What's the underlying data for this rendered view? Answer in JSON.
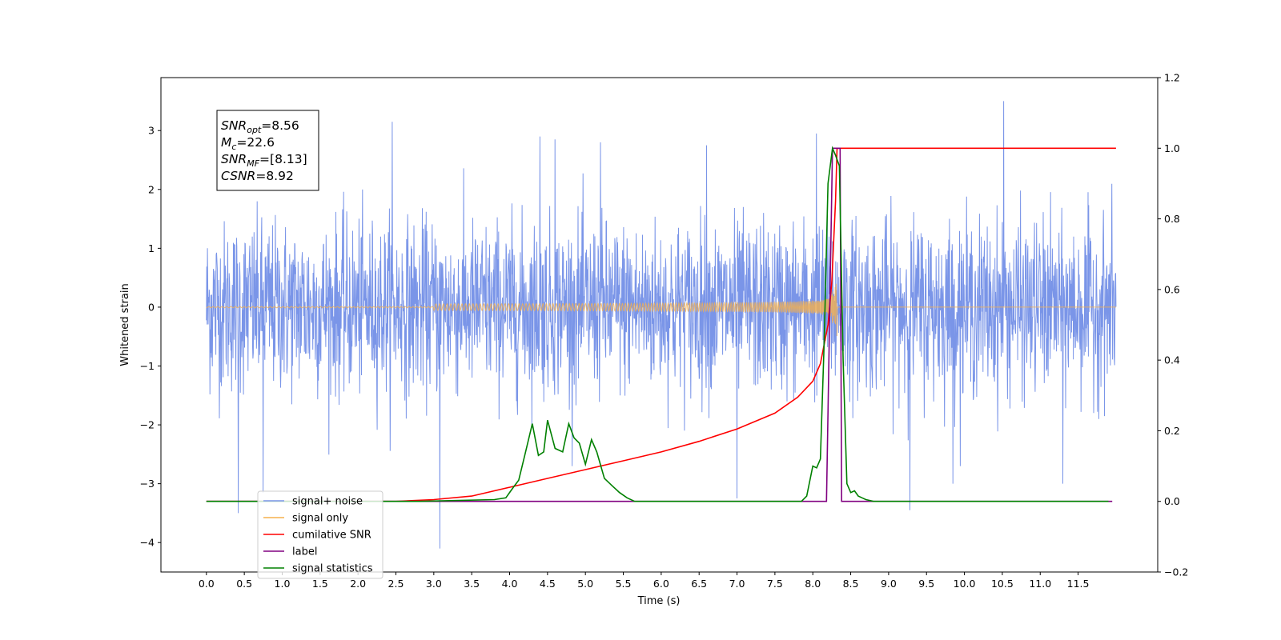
{
  "chart_data": {
    "type": "line",
    "xlabel": "Time (s)",
    "ylabel": "Whitened strain",
    "xlim": [
      -0.6,
      12.55
    ],
    "ylim": [
      -4.5,
      3.9
    ],
    "ylim_right": [
      -0.2,
      1.2
    ],
    "x_ticks": [
      0.0,
      0.5,
      1.0,
      1.5,
      2.0,
      2.5,
      3.0,
      3.5,
      4.0,
      4.5,
      5.0,
      5.5,
      6.0,
      6.5,
      7.0,
      7.5,
      8.0,
      8.5,
      9.0,
      9.5,
      10.0,
      10.5,
      11.0,
      11.5
    ],
    "x_tick_labels": [
      "0.0",
      "0.5",
      "1.0",
      "1.5",
      "2.0",
      "2.5",
      "3.0",
      "3.5",
      "4.0",
      "4.5",
      "5.0",
      "5.5",
      "6.0",
      "6.5",
      "7.0",
      "7.5",
      "8.0",
      "8.5",
      "9.0",
      "9.5",
      "10.0",
      "10.5",
      "11.0",
      "11.5"
    ],
    "y_ticks": [
      -4,
      -3,
      -2,
      -1,
      0,
      1,
      2,
      3
    ],
    "y_tick_labels": [
      "−4",
      "−3",
      "−2",
      "−1",
      "0",
      "1",
      "2",
      "3"
    ],
    "y_right_ticks": [
      -0.2,
      0.0,
      0.2,
      0.4,
      0.6,
      0.8,
      1.0,
      1.2
    ],
    "y_right_tick_labels": [
      "−0.2",
      "0.0",
      "0.2",
      "0.4",
      "0.6",
      "0.8",
      "1.0",
      "1.2"
    ],
    "grid": false,
    "legend_position": "lower-left",
    "info_box": {
      "lines": [
        {
          "sym": "SNR",
          "sub": "opt",
          "value": "=8.56"
        },
        {
          "sym": "M",
          "sub": "c",
          "value": "=22.6"
        },
        {
          "sym": "SNR",
          "sub": "MF",
          "value": "=[8.13]"
        },
        {
          "sym": "CSNR",
          "sub": "",
          "value": "=8.92"
        }
      ]
    },
    "series": [
      {
        "name": "signal+ noise",
        "color": "#7a95e8",
        "axis": "left",
        "kind": "noise",
        "x_range": [
          0.0,
          12.0
        ],
        "peaks": [
          [
            0.42,
            -3.5
          ],
          [
            3.08,
            -4.1
          ],
          [
            9.28,
            -3.45
          ],
          [
            10.52,
            3.5
          ],
          [
            2.45,
            3.15
          ],
          [
            4.4,
            2.9
          ],
          [
            4.6,
            2.85
          ],
          [
            5.2,
            2.8
          ],
          [
            0.75,
            -3.15
          ],
          [
            7.0,
            -3.25
          ],
          [
            9.85,
            -3.0
          ],
          [
            11.3,
            -3.0
          ],
          [
            6.6,
            2.75
          ],
          [
            8.05,
            2.95
          ]
        ]
      },
      {
        "name": "signal only",
        "color": "#f5b04d",
        "axis": "left",
        "kind": "chirp",
        "x_range": [
          0.0,
          12.0
        ],
        "merger": 8.32
      },
      {
        "name": "cumilative SNR",
        "color": "#ff0000",
        "axis": "right",
        "kind": "line",
        "x": [
          0.0,
          2.5,
          3.0,
          3.5,
          4.0,
          4.5,
          5.0,
          5.5,
          6.0,
          6.5,
          7.0,
          7.5,
          7.8,
          8.0,
          8.1,
          8.2,
          8.25,
          8.3,
          8.32,
          12.0
        ],
        "y": [
          0.0,
          0.0,
          0.005,
          0.015,
          0.04,
          0.065,
          0.09,
          0.115,
          0.14,
          0.17,
          0.205,
          0.25,
          0.295,
          0.34,
          0.39,
          0.5,
          0.62,
          0.85,
          1.0,
          1.0
        ]
      },
      {
        "name": "label",
        "color": "#800080",
        "axis": "right",
        "kind": "line",
        "x": [
          0.0,
          8.18,
          8.26,
          8.36,
          8.38,
          11.95
        ],
        "y": [
          0.0,
          0.0,
          1.0,
          1.0,
          0.0,
          0.0
        ]
      },
      {
        "name": "signal statistics",
        "color": "#008000",
        "axis": "right",
        "kind": "line",
        "x": [
          0.0,
          2.8,
          3.8,
          3.95,
          4.05,
          4.12,
          4.2,
          4.3,
          4.38,
          4.45,
          4.5,
          4.6,
          4.7,
          4.78,
          4.85,
          4.92,
          5.0,
          5.08,
          5.15,
          5.25,
          5.35,
          5.45,
          5.55,
          5.65,
          6.5,
          7.85,
          7.92,
          8.0,
          8.05,
          8.1,
          8.15,
          8.2,
          8.26,
          8.3,
          8.35,
          8.4,
          8.45,
          8.5,
          8.55,
          8.6,
          8.65,
          8.7,
          8.8,
          11.9
        ],
        "y": [
          0.0,
          0.0,
          0.005,
          0.01,
          0.04,
          0.06,
          0.13,
          0.22,
          0.13,
          0.14,
          0.23,
          0.15,
          0.14,
          0.22,
          0.18,
          0.165,
          0.105,
          0.175,
          0.14,
          0.065,
          0.045,
          0.025,
          0.01,
          0.0,
          0.0,
          0.0,
          0.015,
          0.1,
          0.095,
          0.12,
          0.45,
          0.9,
          1.0,
          0.98,
          0.95,
          0.4,
          0.05,
          0.025,
          0.03,
          0.015,
          0.01,
          0.005,
          0.0,
          0.0
        ]
      }
    ]
  },
  "legend": {
    "items": [
      {
        "label": "signal+ noise",
        "color": "#7a95e8"
      },
      {
        "label": "signal only",
        "color": "#f5b04d"
      },
      {
        "label": "cumilative SNR",
        "color": "#ff0000"
      },
      {
        "label": "label",
        "color": "#800080"
      },
      {
        "label": "signal statistics",
        "color": "#008000"
      }
    ]
  }
}
